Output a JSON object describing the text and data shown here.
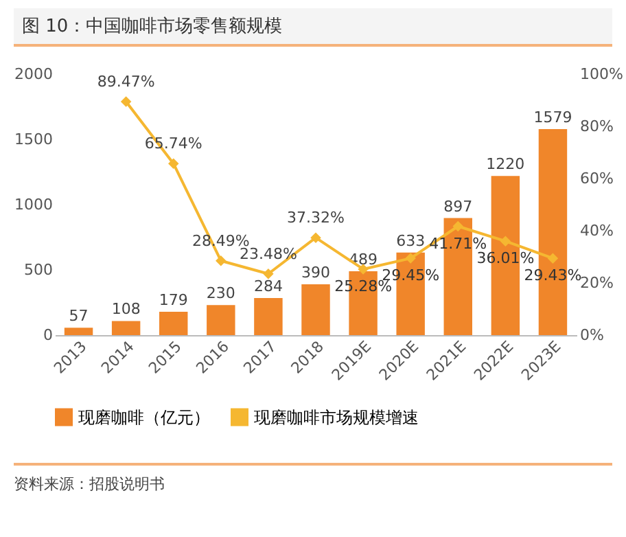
{
  "chart_data": {
    "type": "bar",
    "title": "图 10：中国咖啡市场零售额规模",
    "categories": [
      "2013",
      "2014",
      "2015",
      "2016",
      "2017",
      "2018",
      "2019E",
      "2020E",
      "2021E",
      "2022E",
      "2023E"
    ],
    "series": [
      {
        "name": "现磨咖啡（亿元）",
        "type": "bar",
        "color": "#f0862a",
        "values": [
          57,
          108,
          179,
          230,
          284,
          390,
          489,
          633,
          897,
          1220,
          1579
        ]
      },
      {
        "name": "现磨咖啡市场规模增速",
        "type": "line",
        "axis": "y2",
        "color": "#f5b731",
        "values": [
          null,
          89.47,
          65.74,
          28.49,
          23.48,
          37.32,
          25.28,
          29.45,
          41.71,
          36.01,
          29.43
        ],
        "value_labels": [
          null,
          "89.47%",
          "65.74%",
          "28.49%",
          "23.48%",
          "37.32%",
          "25.28%",
          "29.45%",
          "41.71%",
          "36.01%",
          "29.43%"
        ]
      }
    ],
    "data_labels": true,
    "ylim": [
      0,
      2000
    ],
    "yticks": [
      0,
      500,
      1000,
      1500,
      2000
    ],
    "y2lim": [
      0,
      100
    ],
    "y2ticks": [
      {
        "value": 0,
        "label": "0%"
      },
      {
        "value": 20,
        "label": "20%"
      },
      {
        "value": 40,
        "label": "40%"
      },
      {
        "value": 60,
        "label": "60%"
      },
      {
        "value": 80,
        "label": "80%"
      },
      {
        "value": 100,
        "label": "100%"
      }
    ],
    "marker": "diamond",
    "legend": "bottom",
    "annotations": [
      "资料来源：招股说明书"
    ]
  }
}
